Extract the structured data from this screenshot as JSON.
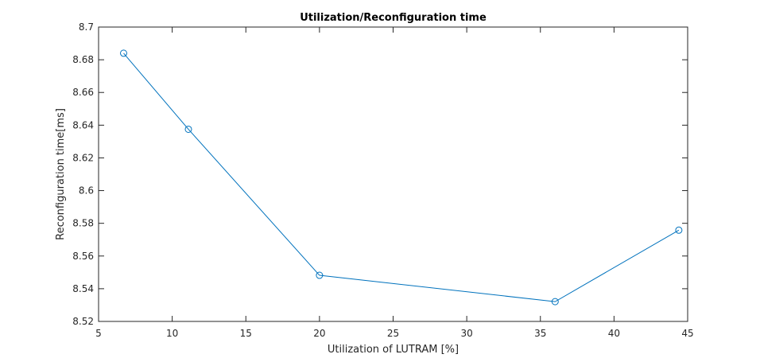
{
  "chart_data": {
    "type": "line",
    "title": "Utilization/Reconfiguration time",
    "xlabel": "Utilization of LUTRAM [%]",
    "ylabel": "Reconfiguration time[ms]",
    "xlim": [
      5,
      45
    ],
    "ylim": [
      8.52,
      8.7
    ],
    "xticks": [
      "5",
      "10",
      "15",
      "20",
      "25",
      "30",
      "35",
      "40",
      "45"
    ],
    "yticks": [
      "8.52",
      "8.54",
      "8.56",
      "8.58",
      "8.6",
      "8.62",
      "8.64",
      "8.66",
      "8.68",
      "8.7"
    ],
    "grid": false,
    "legend": "none",
    "series": [
      {
        "color": "#0072bd",
        "marker": "circle",
        "x": [
          6.7,
          11.1,
          20.0,
          36.0,
          44.4
        ],
        "y": [
          8.684,
          8.6375,
          8.5482,
          8.5321,
          8.5758
        ]
      }
    ]
  }
}
